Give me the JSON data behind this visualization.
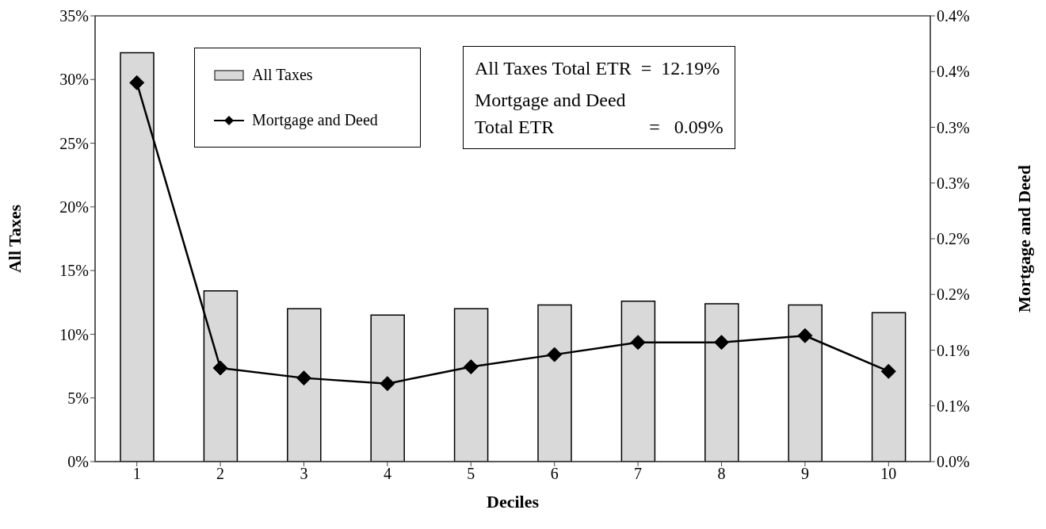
{
  "chart_data": {
    "type": "bar",
    "xlabel": "Deciles",
    "ylabel": "All Taxes",
    "y2label": "Mortgage and Deed",
    "categories": [
      "1",
      "2",
      "3",
      "4",
      "5",
      "6",
      "7",
      "8",
      "9",
      "10"
    ],
    "series": [
      {
        "name": "All Taxes",
        "color": "#d9d9d9",
        "values": [
          32.1,
          13.4,
          12.0,
          11.5,
          12.0,
          12.3,
          12.6,
          12.4,
          12.3,
          11.7
        ]
      },
      {
        "name": "Mortgage and Deed",
        "type": "line",
        "axis": "y2",
        "color": "#000000",
        "marker": "diamond",
        "values": [
          0.34,
          0.084,
          0.075,
          0.07,
          0.085,
          0.096,
          0.107,
          0.107,
          0.113,
          0.081
        ]
      }
    ],
    "ylim": [
      0,
      35
    ],
    "yticks": [
      {
        "value": 0,
        "label": "0%"
      },
      {
        "value": 5,
        "label": "5%"
      },
      {
        "value": 10,
        "label": "10%"
      },
      {
        "value": 15,
        "label": "15%"
      },
      {
        "value": 20,
        "label": "20%"
      },
      {
        "value": 25,
        "label": "25%"
      },
      {
        "value": 30,
        "label": "30%"
      },
      {
        "value": 35,
        "label": "35%"
      }
    ],
    "y2lim": [
      0,
      0.4
    ],
    "y2ticks": [
      {
        "value": 0,
        "label": "0.0%"
      },
      {
        "value": 0.05,
        "label": "0.1%"
      },
      {
        "value": 0.1,
        "label": "0.1%"
      },
      {
        "value": 0.15,
        "label": "0.2%"
      },
      {
        "value": 0.2,
        "label": "0.2%"
      },
      {
        "value": 0.25,
        "label": "0.3%"
      },
      {
        "value": 0.3,
        "label": "0.3%"
      },
      {
        "value": 0.35,
        "label": "0.4%"
      },
      {
        "value": 0.4,
        "label": "0.4%"
      }
    ],
    "legend": "top left",
    "annotations": [
      "All Taxes Total ETR  =  12.19%",
      "Mortgage and Deed\nTotal ETR                    =   0.09%"
    ]
  }
}
